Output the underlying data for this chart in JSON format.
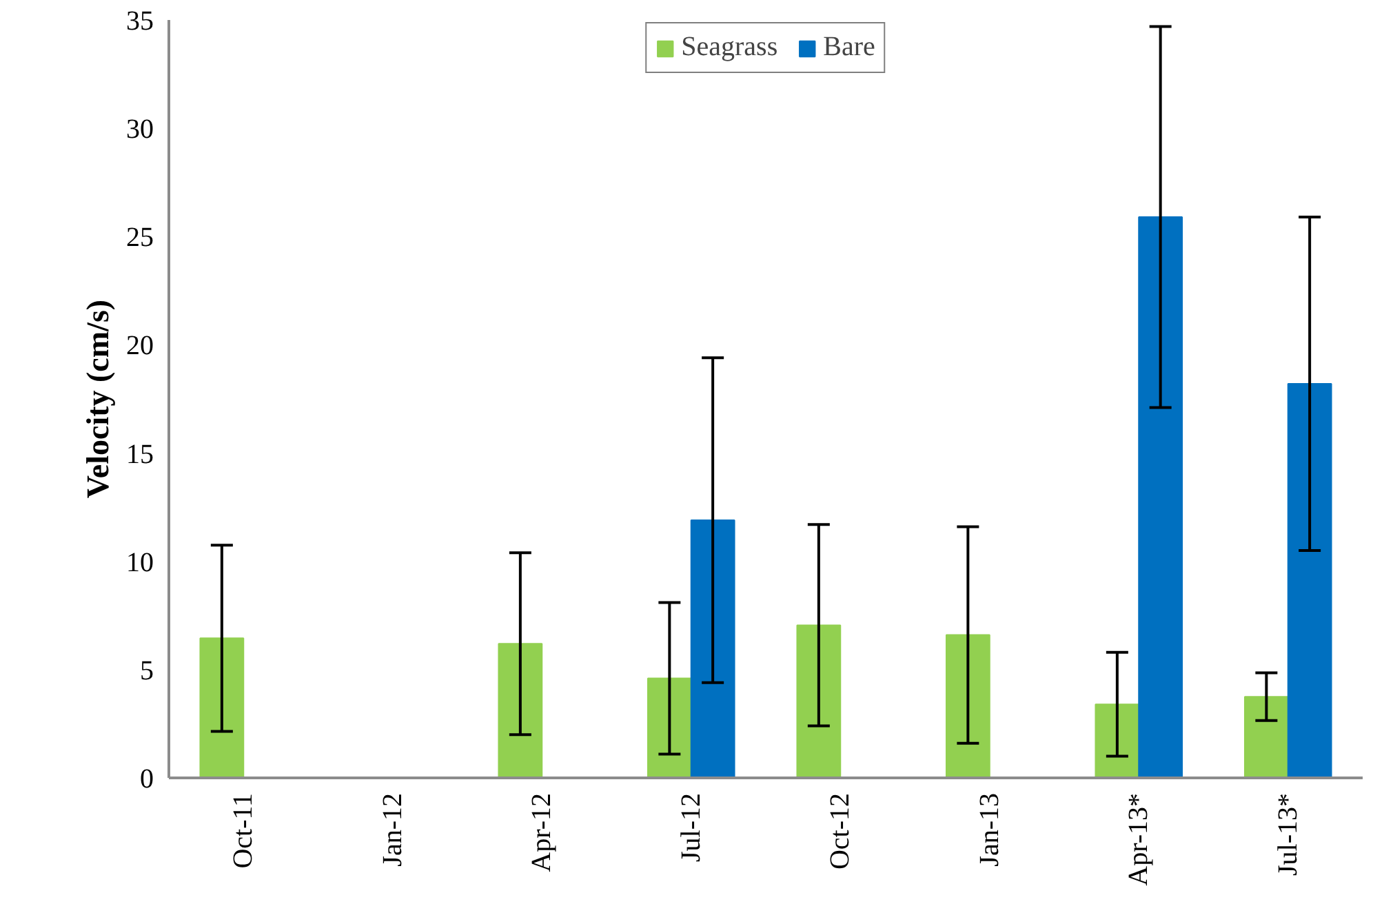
{
  "chart_data": {
    "type": "bar",
    "ylabel": "Velocity (cm/s)",
    "categories": [
      "Oct-11",
      "Jan-12",
      "Apr-12",
      "Jul-12",
      "Oct-12",
      "Jan-13",
      "Apr-13*",
      "Jul-13*"
    ],
    "series": [
      {
        "name": "Seagrass",
        "color": "#92d050",
        "values": [
          6.45,
          0,
          6.2,
          4.6,
          7.05,
          6.6,
          3.4,
          3.75
        ],
        "errors": [
          4.3,
          null,
          4.2,
          3.5,
          4.65,
          5.0,
          2.4,
          1.1
        ]
      },
      {
        "name": "Bare",
        "color": "#0070c0",
        "values": [
          0,
          0,
          0,
          11.9,
          0,
          0,
          25.9,
          18.2
        ],
        "errors": [
          null,
          null,
          null,
          7.5,
          null,
          null,
          8.8,
          7.7
        ]
      }
    ],
    "ylim": [
      0,
      35
    ],
    "yticks": [
      0,
      5,
      10,
      15,
      20,
      25,
      30,
      35
    ],
    "grid": false,
    "legend": "top"
  }
}
